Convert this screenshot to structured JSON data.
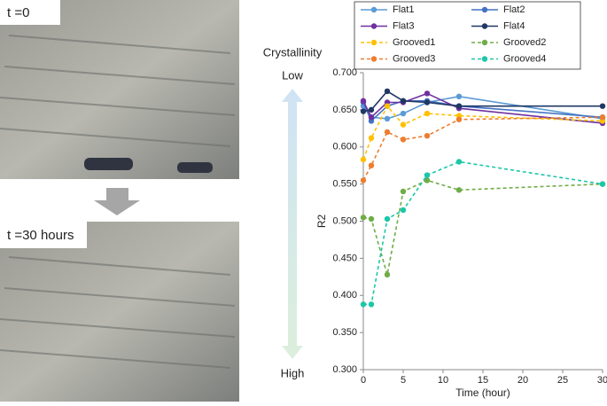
{
  "photos": [
    {
      "label": "t =0"
    },
    {
      "label": "t =30 hours"
    }
  ],
  "crystallinity": {
    "title": "Crystallinity",
    "low": "Low",
    "high": "High"
  },
  "chart_data": {
    "type": "line",
    "x": [
      0,
      1,
      3,
      5,
      8,
      12,
      30
    ],
    "xlabel": "Time (hour)",
    "ylabel": "R2",
    "xlim": [
      0,
      30
    ],
    "xticks": [
      0,
      5,
      10,
      15,
      20,
      25,
      30
    ],
    "ylim": [
      0.3,
      0.7
    ],
    "yticks": [
      {
        "value": 0.3,
        "label": "0.300"
      },
      {
        "value": 0.35,
        "label": "0.350"
      },
      {
        "value": 0.4,
        "label": "0.400"
      },
      {
        "value": 0.45,
        "label": "0.450"
      },
      {
        "value": 0.5,
        "label": "0.500"
      },
      {
        "value": 0.55,
        "label": "0.550"
      },
      {
        "value": 0.6,
        "label": "0.600"
      },
      {
        "value": 0.65,
        "label": "0.650"
      },
      {
        "value": 0.7,
        "label": "0.700"
      }
    ],
    "grid": false,
    "series": [
      {
        "name": "Flat1",
        "color": "#5b9bd5",
        "style": "solid",
        "values": [
          0.655,
          0.64,
          0.638,
          0.645,
          0.66,
          0.668,
          0.638
        ]
      },
      {
        "name": "Flat2",
        "color": "#4472c4",
        "style": "solid",
        "values": [
          0.66,
          0.635,
          0.655,
          0.662,
          0.662,
          0.655,
          0.64
        ]
      },
      {
        "name": "Flat3",
        "color": "#7030a0",
        "style": "solid",
        "values": [
          0.662,
          0.64,
          0.66,
          0.66,
          0.672,
          0.652,
          0.632
        ]
      },
      {
        "name": "Flat4",
        "color": "#1f3864",
        "style": "solid",
        "values": [
          0.648,
          0.65,
          0.675,
          0.662,
          0.66,
          0.655,
          0.655
        ]
      },
      {
        "name": "Grooved1",
        "color": "#ffc000",
        "style": "dashed",
        "values": [
          0.583,
          0.612,
          0.655,
          0.63,
          0.645,
          0.642,
          0.635
        ]
      },
      {
        "name": "Grooved2",
        "color": "#70ad47",
        "style": "dashed",
        "values": [
          0.505,
          0.503,
          0.428,
          0.54,
          0.555,
          0.542,
          0.55
        ]
      },
      {
        "name": "Grooved3",
        "color": "#ed7d31",
        "style": "dashed",
        "values": [
          0.555,
          0.575,
          0.62,
          0.61,
          0.615,
          0.637,
          0.64
        ]
      },
      {
        "name": "Grooved4",
        "color": "#1cc7a8",
        "style": "dashed",
        "values": [
          0.388,
          0.388,
          0.503,
          0.515,
          0.562,
          0.58,
          0.55
        ]
      }
    ]
  }
}
